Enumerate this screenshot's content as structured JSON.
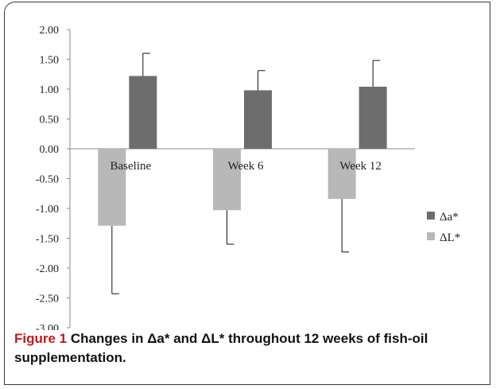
{
  "chart_data": {
    "type": "bar",
    "categories": [
      "Baseline",
      "Week 6",
      "Week 12"
    ],
    "series": [
      {
        "name": "Δa*",
        "color": "#6d6d6d",
        "values": [
          1.22,
          0.98,
          1.04
        ],
        "errors": [
          0.38,
          0.33,
          0.44
        ]
      },
      {
        "name": "ΔL*",
        "color": "#b8b8b8",
        "values": [
          -1.29,
          -1.03,
          -0.84
        ],
        "errors": [
          1.14,
          0.57,
          0.89
        ]
      }
    ],
    "ylim": [
      -3.0,
      2.0
    ],
    "yticks": [
      "2.00",
      "1.50",
      "1.00",
      "0.50",
      "0.00",
      "-0.50",
      "-1.00",
      "-1.50",
      "-2.00",
      "-2.50",
      "-3.00"
    ],
    "legend_position": "right",
    "grid": false
  },
  "caption": {
    "label": "Figure 1",
    "text": " Changes in Δa* and ΔL* throughout 12 weeks of fish-oil supplementation."
  }
}
